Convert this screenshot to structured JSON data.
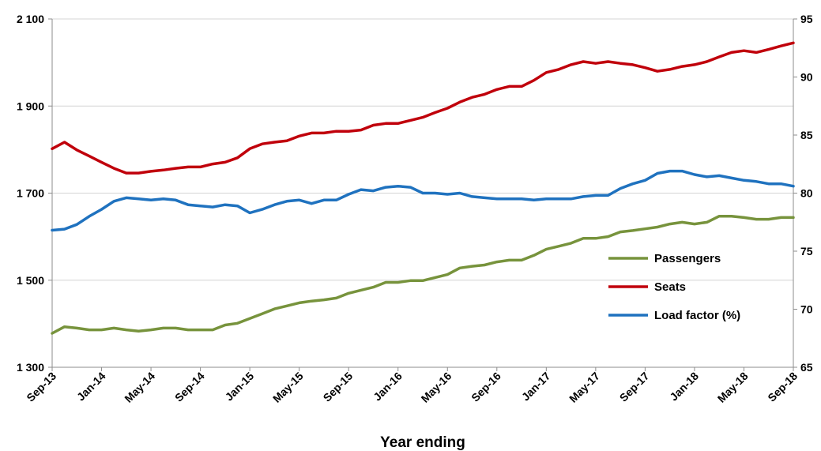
{
  "chart_data": {
    "type": "line",
    "xlabel": "Year ending",
    "x": [
      "Sep-13",
      "Oct-13",
      "Nov-13",
      "Dec-13",
      "Jan-14",
      "Feb-14",
      "Mar-14",
      "Apr-14",
      "May-14",
      "Jun-14",
      "Jul-14",
      "Aug-14",
      "Sep-14",
      "Oct-14",
      "Nov-14",
      "Dec-14",
      "Jan-15",
      "Feb-15",
      "Mar-15",
      "Apr-15",
      "May-15",
      "Jun-15",
      "Jul-15",
      "Aug-15",
      "Sep-15",
      "Oct-15",
      "Nov-15",
      "Dec-15",
      "Jan-16",
      "Feb-16",
      "Mar-16",
      "Apr-16",
      "May-16",
      "Jun-16",
      "Jul-16",
      "Aug-16",
      "Sep-16",
      "Oct-16",
      "Nov-16",
      "Dec-16",
      "Jan-17",
      "Feb-17",
      "Mar-17",
      "Apr-17",
      "May-17",
      "Jun-17",
      "Jul-17",
      "Aug-17",
      "Sep-17",
      "Oct-17",
      "Nov-17",
      "Dec-17",
      "Jan-18",
      "Feb-18",
      "Mar-18",
      "Apr-18",
      "May-18",
      "Jun-18",
      "Jul-18",
      "Aug-18",
      "Sep-18"
    ],
    "x_tick_labels": [
      "Sep-13",
      "Jan-14",
      "May-14",
      "Sep-14",
      "Jan-15",
      "May-15",
      "Sep-15",
      "Jan-16",
      "May-16",
      "Sep-16",
      "Jan-17",
      "May-17",
      "Sep-17",
      "Jan-18",
      "May-18",
      "Sep-18"
    ],
    "y_left": {
      "ylim": [
        1300,
        2100
      ],
      "tick_labels": [
        "1 300",
        "1 500",
        "1 700",
        "1 900",
        "2 100"
      ],
      "tick_values": [
        1300,
        1500,
        1700,
        1900,
        2100
      ]
    },
    "y_right": {
      "ylim": [
        65,
        95
      ],
      "tick_labels": [
        "65",
        "70",
        "75",
        "80",
        "85",
        "90",
        "95"
      ],
      "tick_values": [
        65,
        70,
        75,
        80,
        85,
        90,
        95
      ]
    },
    "grid": true,
    "legend_position": "bottom-right",
    "series": [
      {
        "name": "Passengers",
        "axis": "left",
        "color": "#77933c",
        "values": [
          1378,
          1393,
          1390,
          1386,
          1386,
          1390,
          1386,
          1383,
          1386,
          1390,
          1390,
          1386,
          1386,
          1386,
          1397,
          1401,
          1412,
          1423,
          1434,
          1441,
          1448,
          1452,
          1455,
          1459,
          1470,
          1477,
          1484,
          1495,
          1495,
          1499,
          1499,
          1506,
          1513,
          1528,
          1532,
          1535,
          1542,
          1546,
          1546,
          1557,
          1571,
          1578,
          1585,
          1596,
          1596,
          1600,
          1611,
          1614,
          1618,
          1622,
          1629,
          1633,
          1629,
          1633,
          1647,
          1647,
          1644,
          1640,
          1640,
          1644,
          1644
        ]
      },
      {
        "name": "Seats",
        "axis": "left",
        "color": "#c0000b",
        "values": [
          1802,
          1817,
          1799,
          1785,
          1771,
          1757,
          1746,
          1746,
          1750,
          1753,
          1757,
          1760,
          1760,
          1767,
          1771,
          1781,
          1802,
          1813,
          1817,
          1820,
          1831,
          1838,
          1838,
          1842,
          1842,
          1845,
          1856,
          1860,
          1860,
          1867,
          1874,
          1885,
          1895,
          1909,
          1920,
          1927,
          1938,
          1945,
          1945,
          1959,
          1977,
          1984,
          1995,
          2002,
          1998,
          2002,
          1998,
          1995,
          1988,
          1980,
          1984,
          1991,
          1995,
          2002,
          2013,
          2023,
          2027,
          2023,
          2030,
          2038,
          2045
        ]
      },
      {
        "name": "Load factor (%)",
        "axis": "right",
        "color": "#1f72bf",
        "values": [
          76.8,
          76.9,
          77.3,
          78.0,
          78.6,
          79.3,
          79.6,
          79.5,
          79.4,
          79.5,
          79.4,
          79.0,
          78.9,
          78.8,
          79.0,
          78.9,
          78.3,
          78.6,
          79.0,
          79.3,
          79.4,
          79.1,
          79.4,
          79.4,
          79.9,
          80.3,
          80.2,
          80.5,
          80.6,
          80.5,
          80.0,
          80.0,
          79.9,
          80.0,
          79.7,
          79.6,
          79.5,
          79.5,
          79.5,
          79.4,
          79.5,
          79.5,
          79.5,
          79.7,
          79.8,
          79.8,
          80.4,
          80.8,
          81.1,
          81.7,
          81.9,
          81.9,
          81.6,
          81.4,
          81.5,
          81.3,
          81.1,
          81.0,
          80.8,
          80.8,
          80.6
        ]
      }
    ]
  }
}
